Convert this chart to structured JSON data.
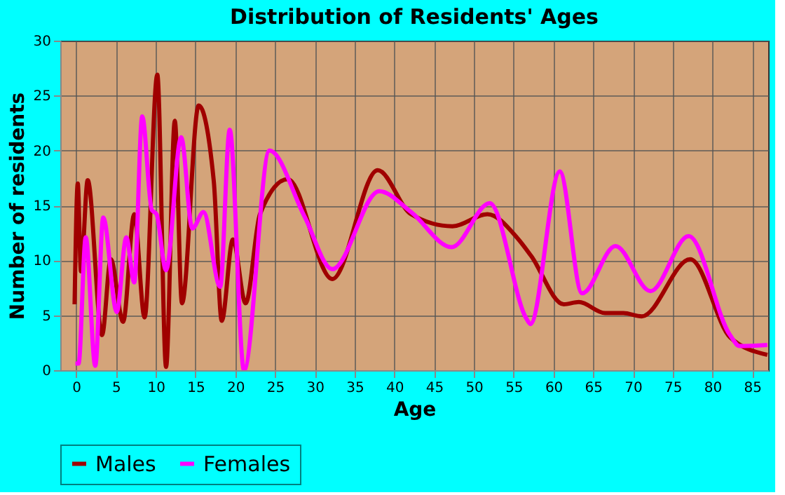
{
  "chart_data": {
    "type": "line",
    "title": "Distribution of Residents' Ages",
    "xlabel": "Age",
    "ylabel": "Number of residents",
    "xlim": [
      -2,
      87
    ],
    "xticks": [
      0,
      5,
      10,
      15,
      20,
      25,
      30,
      35,
      40,
      45,
      50,
      55,
      60,
      65,
      70,
      75,
      80,
      85
    ],
    "ylim": [
      0,
      30
    ],
    "yticks": [
      0,
      5,
      10,
      15,
      20,
      25,
      30
    ],
    "grid": true,
    "legend": "bottom",
    "line_style": "solid",
    "marker": "none",
    "series": [
      {
        "name": "Males",
        "color": "#a00000",
        "x": [
          -0.2,
          0.2,
          0.6,
          1.45,
          3.25,
          4.35,
          5.9,
          7.3,
          8.6,
          10.2,
          11.3,
          12.4,
          13.3,
          15.4,
          17.3,
          18.3,
          19.7,
          21.3,
          23.1,
          26.6,
          32.2,
          37.9,
          42.1,
          47.3,
          51.7,
          55.5,
          57.2,
          61.3,
          63.2,
          66.5,
          68.8,
          71.1,
          77.2,
          82.2,
          86.9
        ],
        "values": [
          6,
          17,
          9,
          17.3,
          3.2,
          10.1,
          4.4,
          14.2,
          4.8,
          26.9,
          0.3,
          22.7,
          6.1,
          24.1,
          17.2,
          4.5,
          11.9,
          6.1,
          14.2,
          17.4,
          8.3,
          18.2,
          14.2,
          13.1,
          14.2,
          12,
          10.4,
          6,
          6.2,
          5.2,
          5.2,
          4.9,
          10.1,
          3,
          1.4
        ]
      },
      {
        "name": "Females",
        "color": "#ff00ff",
        "x": [
          -0.1,
          0.3,
          1.2,
          2.4,
          3.4,
          5.1,
          6.3,
          7.3,
          8.3,
          9.5,
          10.1,
          11.3,
          13.2,
          14.6,
          16,
          18.1,
          19.3,
          21.1,
          24.3,
          28.7,
          32.2,
          38.1,
          42.1,
          47.2,
          52,
          56.6,
          57.1,
          60.8,
          63.6,
          67.8,
          72.2,
          77,
          82.2,
          83.4,
          86.9
        ],
        "values": [
          0.6,
          0.6,
          12.1,
          0.4,
          13.9,
          5.3,
          12.1,
          8,
          23.1,
          14.6,
          14.2,
          9.1,
          21.2,
          12.9,
          14.4,
          7.6,
          21.9,
          0,
          20,
          14,
          9.2,
          16.3,
          14.4,
          11.2,
          15.2,
          4.7,
          4.2,
          18.1,
          7,
          11.3,
          7.2,
          12.2,
          3.2,
          2.2,
          2.3
        ]
      }
    ]
  }
}
